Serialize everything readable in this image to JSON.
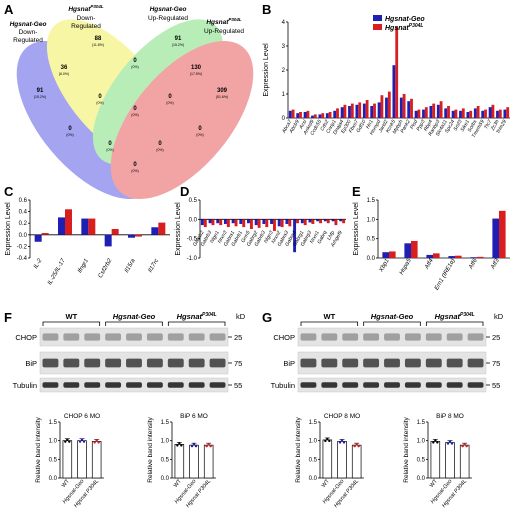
{
  "panels": {
    "A": "A",
    "B": "B",
    "C": "C",
    "D": "D",
    "E": "E",
    "F": "F",
    "G": "G"
  },
  "venn": {
    "set_labels": [
      [
        "Hgsnat-Geo",
        "Down-",
        "Regulated"
      ],
      [
        "Hgsnat",
        "P304L",
        "Down-",
        "Regulated"
      ],
      [
        "Hgsnat-Geo",
        "Up-Regulated"
      ],
      [
        "Hgsnat",
        "P304L",
        "Up-Regulated"
      ]
    ],
    "regions": [
      {
        "count": "91",
        "pct": "(15.2%)"
      },
      {
        "count": "88",
        "pct": "(11.8%)"
      },
      {
        "count": "91",
        "pct": "(15.2%)"
      },
      {
        "count": "309",
        "pct": "(51.6%)"
      },
      {
        "count": "36",
        "pct": "(6.0%)"
      },
      {
        "count": "130",
        "pct": "(17.5%)"
      },
      {
        "count": "0",
        "pct": "(0%)"
      },
      {
        "count": "0",
        "pct": "(0%)"
      },
      {
        "count": "0",
        "pct": "(0%)"
      },
      {
        "count": "0",
        "pct": "(0%)"
      },
      {
        "count": "0",
        "pct": "(0%)"
      },
      {
        "count": "0",
        "pct": "(0%)"
      },
      {
        "count": "0",
        "pct": "(0%)"
      },
      {
        "count": "0",
        "pct": "(0%)"
      },
      {
        "count": "0",
        "pct": "(0%)"
      }
    ]
  },
  "colors": {
    "geo": "#1f1fb4",
    "p304l": "#d81e1e",
    "venn_blue": "#5a5ae6",
    "venn_yellow": "#f2f05a",
    "venn_green": "#7fe07f",
    "venn_red": "#e8585a"
  },
  "chart_data": [
    {
      "panel": "B",
      "type": "bar",
      "ylabel": "Expression Level",
      "ylim": [
        0,
        4
      ],
      "yticks": [
        "0",
        "1",
        "2",
        "3",
        "4"
      ],
      "legend": [
        "Hgsnat-Geo",
        "Hgsnat",
        "P304L"
      ],
      "categories": [
        "Abca7",
        "Abcb9",
        "Acsl",
        "Ankrd9",
        "Ccdc55",
        "Cds2",
        "Cnrip1",
        "Dnaja4",
        "Ep300",
        "Fbxo7",
        "Gdf10",
        "Hn1",
        "Hnrnpd",
        "Jarid2",
        "Kcnk5",
        "Mybph",
        "Pank2",
        "Pisd",
        "Ppp3",
        "Rbp4",
        "Ranbp3",
        "Slc4a11",
        "Spc24",
        "Srsf3",
        "Sike1",
        "Sorbs",
        "Tmem59",
        "Ttc7",
        "Zc3h",
        "Trim29"
      ],
      "series": [
        {
          "name": "Hgsnat-Geo",
          "values": [
            0.3,
            0.2,
            0.25,
            0.1,
            0.15,
            0.2,
            0.3,
            0.45,
            0.5,
            0.55,
            0.6,
            0.5,
            0.65,
            0.85,
            2.2,
            0.85,
            0.7,
            0.3,
            0.35,
            0.5,
            0.55,
            0.4,
            0.3,
            0.3,
            0.25,
            0.4,
            0.3,
            0.45,
            0.3,
            0.35
          ]
        },
        {
          "name": "Hgsnat P304L",
          "values": [
            0.35,
            0.25,
            0.3,
            0.15,
            0.2,
            0.25,
            0.4,
            0.55,
            0.6,
            0.65,
            0.75,
            0.6,
            0.95,
            1.1,
            3.8,
            1.0,
            0.8,
            0.35,
            0.45,
            0.6,
            0.7,
            0.5,
            0.35,
            0.4,
            0.3,
            0.5,
            0.35,
            0.55,
            0.35,
            0.45
          ]
        }
      ]
    },
    {
      "panel": "C",
      "type": "bar",
      "ylabel": "Expression Level",
      "ylim": [
        -0.4,
        0.6
      ],
      "yticks": [
        "-0.4",
        "-0.2",
        "0.0",
        "0.2",
        "0.4",
        "0.6"
      ],
      "categories": [
        "IL-2",
        "IL-25/IL-17",
        "Ifngr1",
        "Csf2rb2",
        "Il15ra",
        "Il17rc"
      ],
      "series": [
        {
          "name": "Hgsnat-Geo",
          "values": [
            -0.12,
            0.3,
            0.28,
            -0.2,
            -0.05,
            0.13
          ]
        },
        {
          "name": "Hgsnat P304L",
          "values": [
            0.03,
            0.44,
            0.28,
            0.1,
            -0.03,
            0.21
          ]
        }
      ]
    },
    {
      "panel": "D",
      "type": "bar",
      "ylabel": "Expression Level",
      "ylim": [
        -1.0,
        0.5
      ],
      "yticks": [
        "-1.0",
        "-0.5",
        "0.0",
        "0.5"
      ],
      "categories": [
        "Gabrb2",
        "Gabrb3",
        "Nlgn1",
        "Nrxn3",
        "Gabra1",
        "Gabrb1",
        "Grm5",
        "Gabrg2",
        "Gabrb3",
        "Nlgn3",
        "Nrxn2",
        "Gabra3",
        "Gabra4",
        "Gabrg1",
        "Gabrg3",
        "Nrxn1",
        "Gabrq",
        "Lhfp",
        "Arhgef9"
      ],
      "series": [
        {
          "name": "Hgsnat-Geo",
          "values": [
            -0.15,
            -0.1,
            -0.1,
            -0.12,
            -0.1,
            -0.12,
            -0.1,
            -0.15,
            -0.12,
            -0.12,
            -0.18,
            -0.12,
            -0.85,
            -0.1,
            -0.08,
            -0.05,
            -0.05,
            -0.05,
            -0.05
          ]
        },
        {
          "name": "Hgsnat P304L",
          "values": [
            -0.2,
            -0.15,
            -0.15,
            -0.2,
            -0.18,
            -0.2,
            -0.25,
            -0.22,
            -0.2,
            -0.3,
            -0.2,
            -0.18,
            -0.1,
            -0.15,
            -0.12,
            -0.1,
            -0.1,
            -0.15,
            -0.1
          ]
        }
      ]
    },
    {
      "panel": "E",
      "type": "bar",
      "ylabel": "Expression Level",
      "ylim": [
        0,
        1.5
      ],
      "yticks": [
        "0.0",
        "0.5",
        "1.0",
        "1.5"
      ],
      "categories": [
        "Xbp1",
        "Hspa5",
        "Atf4",
        "Ern1 (IRE1α)",
        "Atf6",
        "Atf3"
      ],
      "series": [
        {
          "name": "Hgsnat-Geo",
          "values": [
            0.15,
            0.38,
            0.08,
            0.05,
            0.02,
            1.02
          ]
        },
        {
          "name": "Hgsnat P304L",
          "values": [
            0.17,
            0.44,
            0.12,
            0.06,
            0.03,
            1.22
          ]
        }
      ]
    },
    {
      "panel": "F-CHOP",
      "type": "bar",
      "title": "CHOP 6 MO",
      "ylabel": "Relative band intensity",
      "ylim": [
        0,
        1.5
      ],
      "yticks": [
        "0.0",
        "0.5",
        "1.0",
        "1.5"
      ],
      "categories": [
        "WT",
        "Hgsnat-Geo",
        "Hgsnat P304L"
      ],
      "values": [
        1.0,
        1.0,
        0.98
      ]
    },
    {
      "panel": "F-BiP",
      "type": "bar",
      "title": "BiP 6 MO",
      "ylabel": "Relative band intensity",
      "ylim": [
        0,
        1.5
      ],
      "yticks": [
        "0.0",
        "0.5",
        "1.0",
        "1.5"
      ],
      "categories": [
        "WT",
        "Hgsnat-Geo",
        "Hgsnat P304L"
      ],
      "values": [
        0.9,
        0.88,
        0.88
      ]
    },
    {
      "panel": "G-CHOP",
      "type": "bar",
      "title": "CHOP 8 MO",
      "ylabel": "Relative band intensity",
      "ylim": [
        0,
        1.5
      ],
      "yticks": [
        "0.0",
        "0.5",
        "1.0",
        "1.5"
      ],
      "categories": [
        "WT",
        "Hgsnat-Geo",
        "Hgsnat P304L"
      ],
      "values": [
        1.02,
        0.98,
        0.88
      ]
    },
    {
      "panel": "G-BiP",
      "type": "bar",
      "title": "BiP 8 MO",
      "ylabel": "Relative band intensity",
      "ylim": [
        0,
        1.5
      ],
      "yticks": [
        "0.0",
        "0.5",
        "1.0",
        "1.5"
      ],
      "categories": [
        "WT",
        "Hgsnat-Geo",
        "Hgsnat P304L"
      ],
      "values": [
        0.98,
        0.95,
        0.88
      ]
    }
  ],
  "blots": {
    "F": {
      "groups": [
        "WT",
        "Hgsnat-Geo",
        "Hgsnat",
        "P304L"
      ],
      "rows": [
        "CHOP",
        "BiP",
        "Tubulin"
      ],
      "markers": [
        "kD",
        "25",
        "75",
        "55"
      ]
    },
    "G": {
      "groups": [
        "WT",
        "Hgsnat-Geo",
        "Hgsnat",
        "P304L"
      ],
      "rows": [
        "CHOP",
        "BiP",
        "Tubulin"
      ],
      "markers": [
        "kD",
        "25",
        "75",
        "55"
      ]
    }
  }
}
